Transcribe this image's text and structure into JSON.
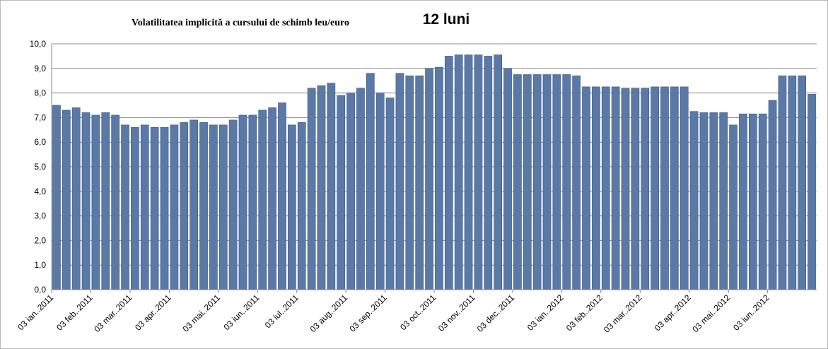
{
  "chart_data": {
    "type": "bar",
    "title": "Volatilitatea implicită a cursului de schimb leu/euro",
    "subtitle": "12 luni",
    "categories": [
      "03 ian..2011",
      null,
      null,
      null,
      "03 feb..2011",
      null,
      null,
      null,
      "03 mar..2011",
      null,
      null,
      null,
      "03 apr..2011",
      null,
      null,
      null,
      null,
      "03 mai..2011",
      null,
      null,
      null,
      "03 iun..2011",
      null,
      null,
      null,
      "03 iul..2011",
      null,
      null,
      null,
      null,
      "03 aug..2011",
      null,
      null,
      null,
      "03 sep..2011",
      null,
      null,
      null,
      null,
      "03 oct..2011",
      null,
      null,
      null,
      "03 nov..2011",
      null,
      null,
      null,
      "03 dec..2011",
      null,
      null,
      null,
      null,
      "03 ian..2012",
      null,
      null,
      null,
      "03 feb..2012",
      null,
      null,
      null,
      "03 mar..2012",
      null,
      null,
      null,
      null,
      "03 apr..2012",
      null,
      null,
      null,
      "03 mai..2012",
      null,
      null,
      null,
      "03 iun..2012",
      null,
      null,
      null,
      null
    ],
    "values": [
      7.5,
      7.3,
      7.4,
      7.2,
      7.1,
      7.2,
      7.1,
      6.7,
      6.6,
      6.7,
      6.6,
      6.6,
      6.7,
      6.8,
      6.9,
      6.8,
      6.7,
      6.7,
      6.9,
      7.1,
      7.1,
      7.3,
      7.4,
      7.6,
      6.7,
      6.8,
      8.2,
      8.3,
      8.4,
      7.9,
      8.0,
      8.2,
      8.8,
      8.0,
      7.8,
      8.8,
      8.7,
      8.7,
      9.0,
      9.05,
      9.5,
      9.55,
      9.55,
      9.55,
      9.5,
      9.55,
      9.0,
      8.75,
      8.75,
      8.75,
      8.75,
      8.75,
      8.75,
      8.7,
      8.25,
      8.25,
      8.25,
      8.25,
      8.2,
      8.2,
      8.2,
      8.25,
      8.25,
      8.25,
      8.25,
      7.25,
      7.2,
      7.2,
      7.2,
      6.7,
      7.15,
      7.15,
      7.15,
      7.7,
      8.7,
      8.7,
      8.7,
      7.95
    ],
    "color": "#5b79a6",
    "ylim": [
      0,
      10
    ],
    "yticks": [
      {
        "value": 0,
        "label": "0,0"
      },
      {
        "value": 1,
        "label": "1,0"
      },
      {
        "value": 2,
        "label": "2,0"
      },
      {
        "value": 3,
        "label": "3,0"
      },
      {
        "value": 4,
        "label": "4,0"
      },
      {
        "value": 5,
        "label": "5,0"
      },
      {
        "value": 6,
        "label": "6,0"
      },
      {
        "value": 7,
        "label": "7,0"
      },
      {
        "value": 8,
        "label": "8,0"
      },
      {
        "value": 9,
        "label": "9,0"
      },
      {
        "value": 10,
        "label": "10,0"
      }
    ],
    "grid": true
  }
}
